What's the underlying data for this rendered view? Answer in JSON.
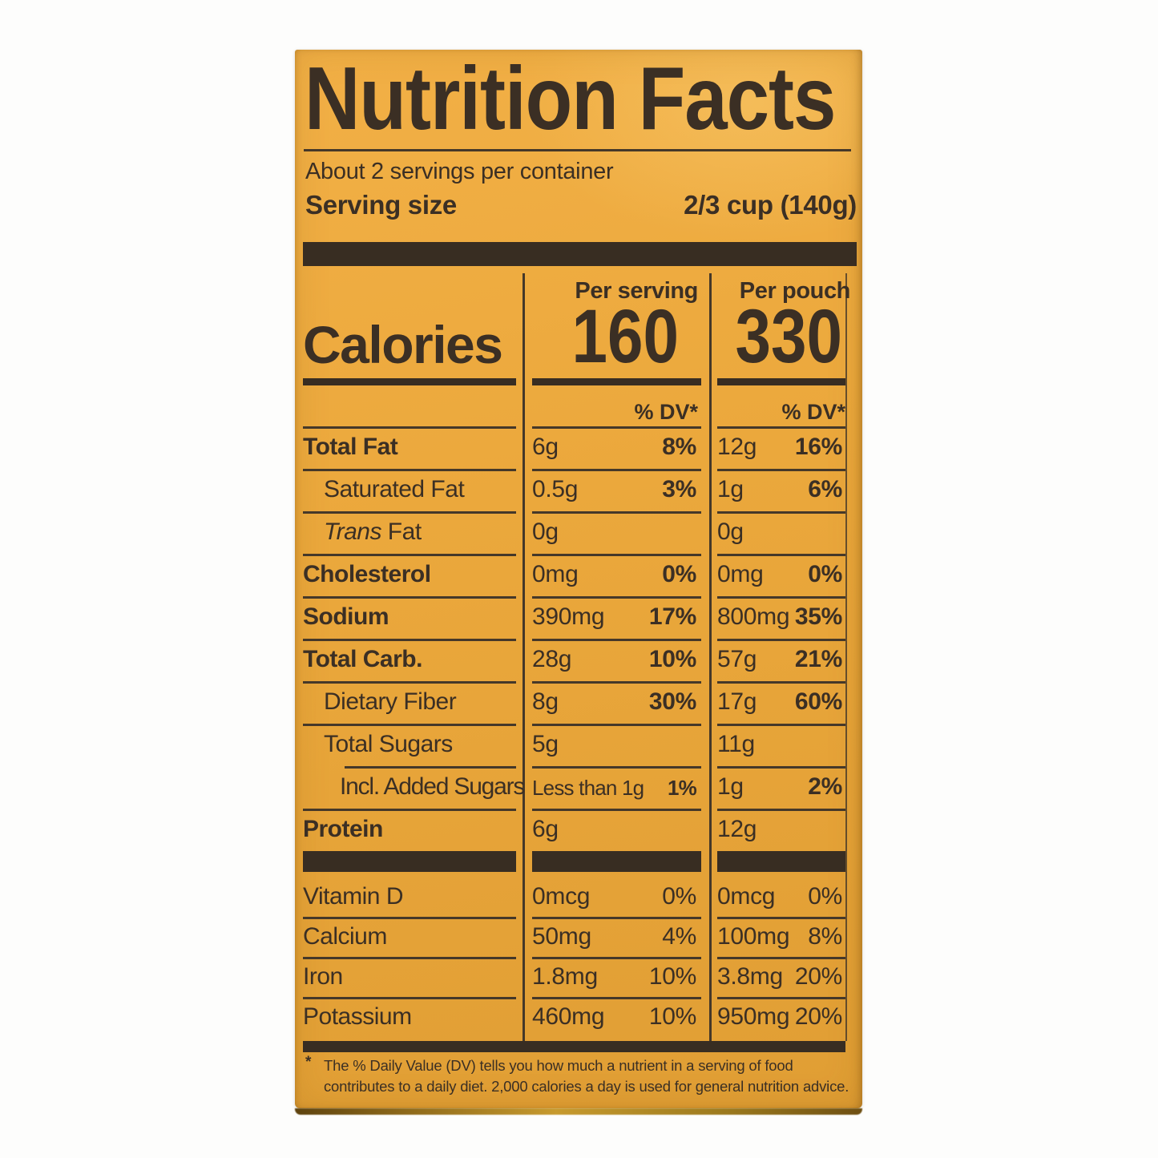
{
  "colors": {
    "background_yellow": "#eba83c",
    "ink": "#3b2f24",
    "bar": "#382d22"
  },
  "label": {
    "title": "Nutrition Facts",
    "servings_per_container": "About 2 servings per container",
    "serving_size_label": "Serving size",
    "serving_size_value": "2/3 cup (140g)",
    "calories": {
      "label": "Calories",
      "per_serving_header": "Per serving",
      "per_pouch_header": "Per pouch",
      "per_serving_value": "160",
      "per_pouch_value": "330",
      "dv_header": "% DV*"
    },
    "rows": [
      {
        "name": "Total Fat",
        "bold": true,
        "indent": 0,
        "serv": "6g",
        "serv_dv": "8%",
        "pouch": "12g",
        "pouch_dv": "16%"
      },
      {
        "name": "Saturated Fat",
        "bold": false,
        "indent": 1,
        "serv": "0.5g",
        "serv_dv": "3%",
        "pouch": "1g",
        "pouch_dv": "6%"
      },
      {
        "name_italic": "Trans",
        "name": " Fat",
        "bold": false,
        "indent": 1,
        "serv": "0g",
        "serv_dv": "",
        "pouch": "0g",
        "pouch_dv": ""
      },
      {
        "name": "Cholesterol",
        "bold": true,
        "indent": 0,
        "serv": "0mg",
        "serv_dv": "0%",
        "pouch": "0mg",
        "pouch_dv": "0%"
      },
      {
        "name": "Sodium",
        "bold": true,
        "indent": 0,
        "serv": "390mg",
        "serv_dv": "17%",
        "pouch": "800mg",
        "pouch_dv": "35%"
      },
      {
        "name": "Total Carb.",
        "bold": true,
        "indent": 0,
        "serv": "28g",
        "serv_dv": "10%",
        "pouch": "57g",
        "pouch_dv": "21%"
      },
      {
        "name": "Dietary Fiber",
        "bold": false,
        "indent": 1,
        "serv": "8g",
        "serv_dv": "30%",
        "pouch": "17g",
        "pouch_dv": "60%"
      },
      {
        "name": "Total Sugars",
        "bold": false,
        "indent": 1,
        "serv": "5g",
        "serv_dv": "",
        "pouch": "11g",
        "pouch_dv": ""
      },
      {
        "name": "Incl. Added Sugars",
        "bold": false,
        "indent": 2,
        "indent_top_line": true,
        "serv": "Less than 1g",
        "serv_dv": "1%",
        "pouch": "1g",
        "pouch_dv": "2%"
      },
      {
        "name": "Protein",
        "bold": true,
        "indent": 0,
        "serv": "6g",
        "serv_dv": "",
        "pouch": "12g",
        "pouch_dv": ""
      }
    ],
    "vitamins": [
      {
        "name": "Vitamin D",
        "serv": "0mcg",
        "serv_dv": "0%",
        "pouch": "0mcg",
        "pouch_dv": "0%"
      },
      {
        "name": "Calcium",
        "serv": "50mg",
        "serv_dv": "4%",
        "pouch": "100mg",
        "pouch_dv": "8%"
      },
      {
        "name": "Iron",
        "serv": "1.8mg",
        "serv_dv": "10%",
        "pouch": "3.8mg",
        "pouch_dv": "20%"
      },
      {
        "name": "Potassium",
        "serv": "460mg",
        "serv_dv": "10%",
        "pouch": "950mg",
        "pouch_dv": "20%"
      }
    ],
    "footnote_star": "*",
    "footnote": "The % Daily Value (DV) tells you how much a nutrient in a serving of food contributes to a daily diet. 2,000 calories a day is used for general nutrition advice."
  }
}
